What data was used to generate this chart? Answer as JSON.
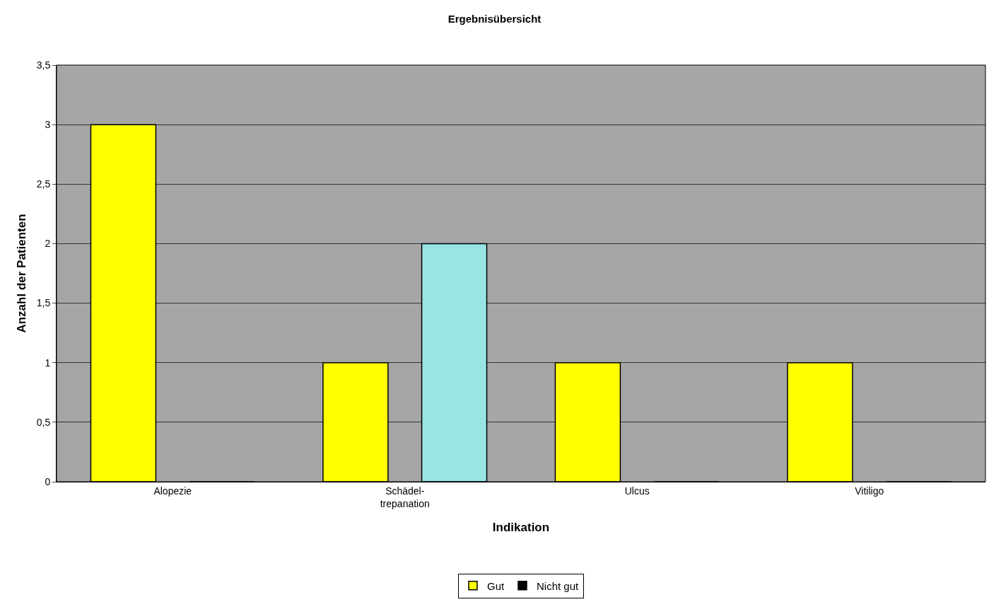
{
  "chart_data": {
    "type": "bar",
    "title": "Ergebnisübersicht",
    "xlabel": "Indikation",
    "ylabel": "Anzahl der Patienten",
    "categories": [
      "Alopezie",
      "Schädel-\ntrepanation",
      "Ulcus",
      "Vitiligo"
    ],
    "series": [
      {
        "name": "Gut",
        "color": "#ffff00",
        "values": [
          3,
          1,
          1,
          1
        ]
      },
      {
        "name": "Nicht gut",
        "color": "#000000",
        "colors": [
          null,
          "#99e5e5",
          null,
          null
        ],
        "values": [
          0,
          2,
          0,
          0
        ]
      }
    ],
    "ylim": [
      0,
      3.5
    ],
    "yticks": [
      0,
      {
        "value": 0.5,
        "label": "0,5"
      },
      1,
      {
        "value": 1.5,
        "label": "1,5"
      },
      2,
      {
        "value": 2.5,
        "label": "2,5"
      },
      3,
      {
        "value": 3.5,
        "label": "3,5"
      }
    ],
    "grid": "y",
    "legend": "bottom"
  }
}
